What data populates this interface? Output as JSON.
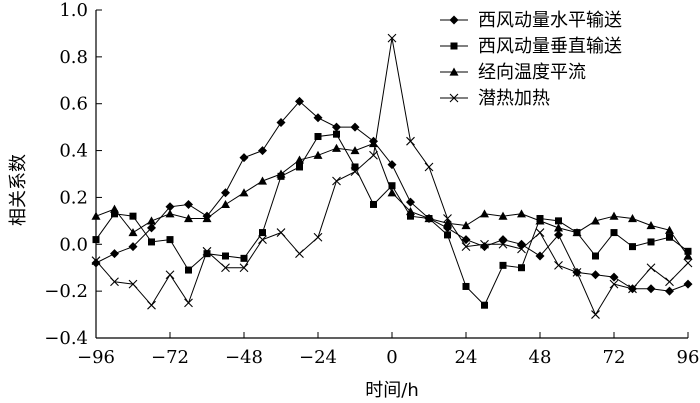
{
  "chart_data": {
    "type": "line",
    "xlabel": "时间/h",
    "ylabel": "相关系数",
    "xlim": [
      -96,
      96
    ],
    "ylim": [
      -0.4,
      1.0
    ],
    "xticks": [
      -96,
      -72,
      -48,
      -24,
      0,
      24,
      48,
      72,
      96
    ],
    "xtick_labels": [
      "−96",
      "−72",
      "−48",
      "−24",
      "0",
      "24",
      "48",
      "72",
      "96"
    ],
    "yticks": [
      -0.4,
      -0.2,
      0.0,
      0.2,
      0.4,
      0.6,
      0.8,
      1.0
    ],
    "ytick_labels": [
      "−0.4",
      "−0.2",
      "0.0",
      "0.2",
      "0.4",
      "0.6",
      "0.8",
      "1.0"
    ],
    "grid": false,
    "legend_position": "top-right",
    "series": [
      {
        "name": "西风动量水平输送",
        "marker": "diamond",
        "x": [
          -96,
          -90,
          -84,
          -78,
          -72,
          -66,
          -60,
          -54,
          -48,
          -42,
          -36,
          -30,
          -24,
          -18,
          -12,
          -6,
          0,
          6,
          12,
          18,
          24,
          30,
          36,
          42,
          48,
          54,
          60,
          66,
          72,
          78,
          84,
          90,
          96
        ],
        "values": [
          -0.08,
          -0.04,
          -0.01,
          0.07,
          0.16,
          0.17,
          0.12,
          0.22,
          0.37,
          0.4,
          0.52,
          0.61,
          0.54,
          0.5,
          0.5,
          0.44,
          0.34,
          0.18,
          0.11,
          0.07,
          0.02,
          -0.01,
          0.02,
          0.0,
          -0.05,
          0.04,
          -0.12,
          -0.13,
          -0.14,
          -0.19,
          -0.19,
          -0.2,
          -0.17
        ]
      },
      {
        "name": "西风动量垂直输送",
        "marker": "square",
        "x": [
          -96,
          -90,
          -84,
          -78,
          -72,
          -66,
          -60,
          -54,
          -48,
          -42,
          -36,
          -30,
          -24,
          -18,
          -12,
          -6,
          0,
          6,
          12,
          18,
          24,
          30,
          36,
          42,
          48,
          54,
          60,
          66,
          72,
          78,
          84,
          90,
          96
        ],
        "values": [
          0.02,
          0.13,
          0.12,
          0.01,
          0.02,
          -0.11,
          -0.04,
          -0.05,
          -0.06,
          0.05,
          0.29,
          0.33,
          0.46,
          0.47,
          0.33,
          0.17,
          0.25,
          0.12,
          0.11,
          0.04,
          -0.18,
          -0.26,
          -0.09,
          -0.1,
          0.11,
          0.1,
          0.05,
          -0.05,
          0.05,
          -0.01,
          0.01,
          0.03,
          -0.03
        ]
      },
      {
        "name": "经向温度平流",
        "marker": "triangle",
        "x": [
          -96,
          -90,
          -84,
          -78,
          -72,
          -66,
          -60,
          -54,
          -48,
          -42,
          -36,
          -30,
          -24,
          -18,
          -12,
          -6,
          0,
          6,
          12,
          18,
          24,
          30,
          36,
          42,
          48,
          54,
          60,
          66,
          72,
          78,
          84,
          90,
          96
        ],
        "values": [
          0.12,
          0.15,
          0.05,
          0.1,
          0.13,
          0.11,
          0.11,
          0.17,
          0.22,
          0.27,
          0.3,
          0.36,
          0.38,
          0.41,
          0.4,
          0.43,
          0.22,
          0.14,
          0.11,
          0.09,
          0.08,
          0.13,
          0.12,
          0.13,
          0.1,
          0.07,
          0.05,
          0.1,
          0.12,
          0.11,
          0.08,
          0.06,
          -0.05
        ]
      },
      {
        "name": "潜热加热",
        "marker": "cross",
        "x": [
          -96,
          -90,
          -84,
          -78,
          -72,
          -66,
          -60,
          -54,
          -48,
          -42,
          -36,
          -30,
          -24,
          -18,
          -12,
          -6,
          0,
          6,
          12,
          18,
          24,
          30,
          36,
          42,
          48,
          54,
          60,
          66,
          72,
          78,
          84,
          90,
          96
        ],
        "values": [
          -0.07,
          -0.16,
          -0.17,
          -0.26,
          -0.13,
          -0.25,
          -0.03,
          -0.1,
          -0.1,
          0.02,
          0.05,
          -0.04,
          0.03,
          0.27,
          0.31,
          0.38,
          0.88,
          0.44,
          0.33,
          0.11,
          -0.01,
          0.0,
          0.0,
          -0.02,
          0.05,
          -0.09,
          -0.12,
          -0.3,
          -0.17,
          -0.19,
          -0.1,
          -0.16,
          -0.08
        ]
      }
    ]
  }
}
